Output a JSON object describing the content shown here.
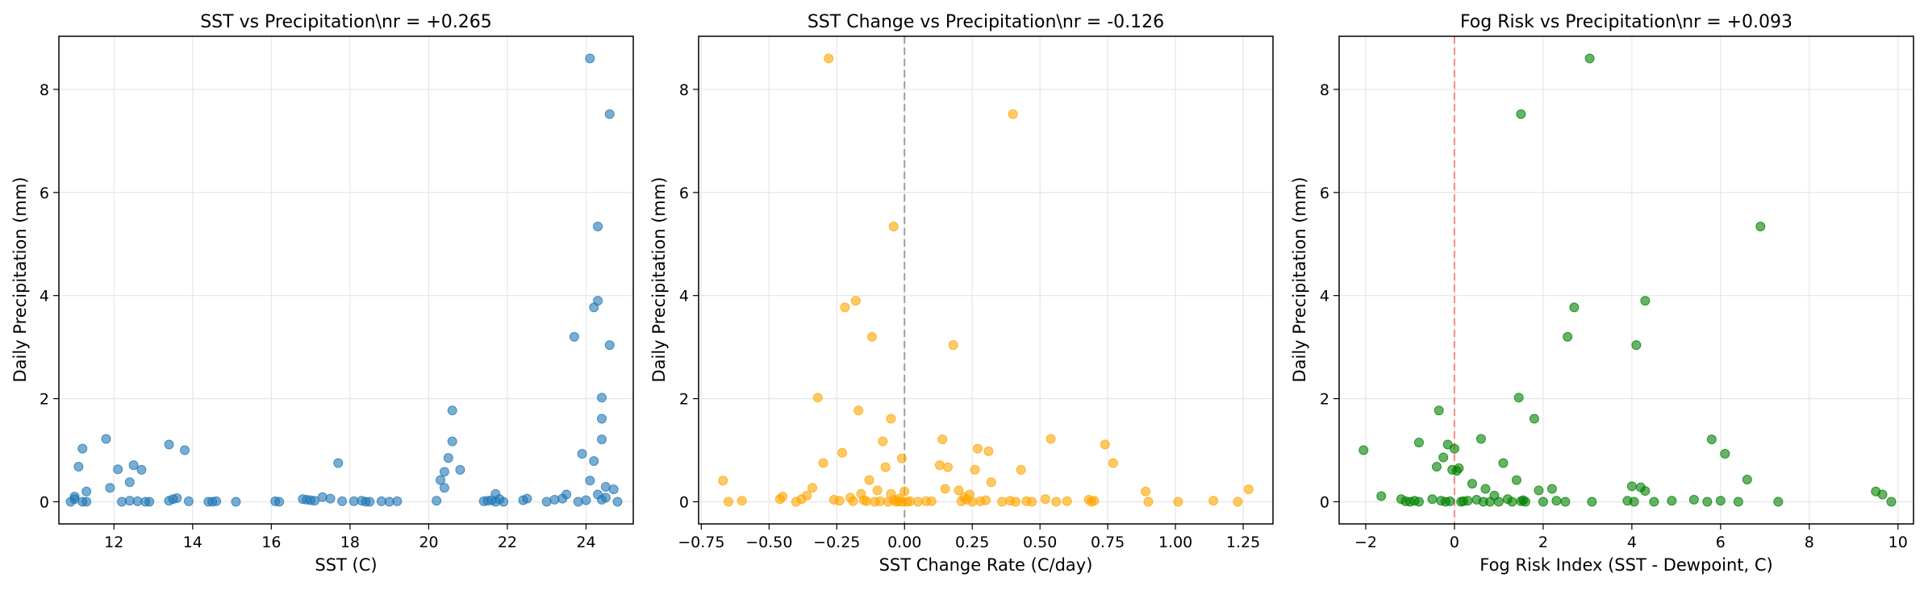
{
  "chart_data": [
    {
      "type": "scatter",
      "title": "SST vs Precipitation\\nr = +0.265",
      "xlabel": "SST (C)",
      "ylabel": "Daily Precipitation (mm)",
      "xlim": [
        10.6,
        25.2
      ],
      "ylim": [
        -0.43,
        9.03
      ],
      "xticks": [
        12,
        14,
        16,
        18,
        20,
        22,
        24
      ],
      "yticks": [
        0,
        2,
        4,
        6,
        8
      ],
      "xtick_labels": [
        "12",
        "14",
        "16",
        "18",
        "20",
        "22",
        "24"
      ],
      "ytick_labels": [
        "0",
        "2",
        "4",
        "6",
        "8"
      ],
      "grid": true,
      "color": "#1f77b4",
      "reference_line": null,
      "x": [
        10.9,
        11.0,
        11.0,
        11.1,
        11.2,
        11.2,
        11.3,
        11.3,
        11.8,
        11.9,
        12.1,
        12.2,
        12.4,
        12.4,
        12.5,
        12.6,
        12.7,
        12.8,
        12.9,
        13.4,
        13.4,
        13.5,
        13.6,
        13.8,
        13.9,
        14.4,
        14.5,
        14.6,
        15.1,
        16.1,
        16.2,
        16.8,
        16.9,
        17.0,
        17.1,
        17.3,
        17.5,
        17.7,
        17.8,
        18.1,
        18.3,
        18.4,
        18.5,
        18.8,
        19.0,
        19.2,
        20.2,
        20.3,
        20.4,
        20.4,
        20.5,
        20.6,
        20.6,
        20.8,
        21.4,
        21.5,
        21.6,
        21.7,
        21.7,
        21.8,
        21.9,
        22.4,
        22.5,
        23.0,
        23.2,
        23.4,
        23.5,
        23.7,
        23.8,
        23.9,
        24.0,
        24.1,
        24.1,
        24.2,
        24.2,
        24.3,
        24.3,
        24.3,
        24.4,
        24.4,
        24.4,
        24.4,
        24.5,
        24.5,
        24.6,
        24.6,
        24.7,
        24.8
      ],
      "y": [
        0.0,
        0.1,
        0.05,
        0.68,
        0.0,
        1.03,
        0.2,
        0.0,
        1.22,
        0.27,
        0.63,
        0.0,
        0.38,
        0.02,
        0.71,
        0.01,
        0.62,
        0.0,
        0.0,
        1.11,
        0.02,
        0.05,
        0.07,
        1.0,
        0.01,
        0.0,
        0.0,
        0.01,
        0.0,
        0.01,
        0.0,
        0.05,
        0.04,
        0.03,
        0.02,
        0.09,
        0.06,
        0.75,
        0.01,
        0.01,
        0.02,
        0.0,
        0.0,
        0.01,
        0.0,
        0.01,
        0.02,
        0.42,
        0.27,
        0.58,
        0.85,
        1.17,
        1.77,
        0.62,
        0.01,
        0.02,
        0.03,
        0.0,
        0.15,
        0.05,
        0.0,
        0.03,
        0.06,
        0.0,
        0.04,
        0.06,
        0.14,
        3.2,
        0.0,
        0.93,
        0.03,
        0.41,
        8.6,
        0.79,
        3.77,
        3.9,
        0.14,
        5.34,
        0.04,
        1.21,
        1.61,
        2.02,
        0.08,
        0.29,
        7.52,
        3.04,
        0.24,
        0.0
      ]
    },
    {
      "type": "scatter",
      "title": "SST Change vs Precipitation\\nr = -0.126",
      "xlabel": "SST Change Rate (C/day)",
      "ylabel": "Daily Precipitation (mm)",
      "xlim": [
        -0.76,
        1.36
      ],
      "ylim": [
        -0.43,
        9.03
      ],
      "xticks": [
        -0.75,
        -0.5,
        -0.25,
        0.0,
        0.25,
        0.5,
        0.75,
        1.0,
        1.25
      ],
      "yticks": [
        0,
        2,
        4,
        6,
        8
      ],
      "xtick_labels": [
        "−0.75",
        "−0.50",
        "−0.25",
        "0.00",
        "0.25",
        "0.50",
        "0.75",
        "1.00",
        "1.25"
      ],
      "ytick_labels": [
        "0",
        "2",
        "4",
        "6",
        "8"
      ],
      "grid": true,
      "color": "#ffa500",
      "reference_line": {
        "axis": "x",
        "value": 0.0,
        "color": "#888888"
      },
      "x": [
        -0.67,
        -0.65,
        -0.6,
        -0.46,
        -0.45,
        -0.4,
        -0.38,
        -0.36,
        -0.34,
        -0.32,
        -0.3,
        -0.28,
        -0.26,
        -0.24,
        -0.23,
        -0.22,
        -0.2,
        -0.19,
        -0.18,
        -0.17,
        -0.16,
        -0.15,
        -0.14,
        -0.13,
        -0.12,
        -0.11,
        -0.1,
        -0.09,
        -0.08,
        -0.07,
        -0.06,
        -0.05,
        -0.05,
        -0.04,
        -0.04,
        -0.03,
        -0.02,
        -0.02,
        -0.01,
        -0.01,
        0.0,
        0.01,
        0.02,
        0.05,
        0.08,
        0.1,
        0.13,
        0.14,
        0.15,
        0.16,
        0.18,
        0.2,
        0.21,
        0.22,
        0.23,
        0.24,
        0.25,
        0.26,
        0.27,
        0.28,
        0.3,
        0.31,
        0.32,
        0.36,
        0.39,
        0.4,
        0.41,
        0.43,
        0.45,
        0.47,
        0.52,
        0.54,
        0.56,
        0.6,
        0.68,
        0.69,
        0.7,
        0.74,
        0.77,
        0.89,
        0.9,
        1.01,
        1.14,
        1.23,
        1.27
      ],
      "y": [
        0.41,
        0.0,
        0.02,
        0.05,
        0.1,
        0.0,
        0.05,
        0.12,
        0.27,
        2.02,
        0.75,
        8.6,
        0.04,
        0.02,
        0.95,
        3.77,
        0.08,
        0.01,
        3.9,
        1.77,
        0.15,
        0.03,
        0.01,
        0.42,
        3.2,
        0.0,
        0.22,
        0.01,
        1.17,
        0.67,
        0.0,
        1.61,
        0.15,
        5.34,
        0.03,
        0.0,
        0.01,
        0.06,
        0.84,
        0.0,
        0.2,
        0.0,
        0.01,
        0.0,
        0.01,
        0.01,
        0.71,
        1.21,
        0.25,
        0.67,
        3.04,
        0.22,
        0.01,
        0.09,
        0.04,
        0.14,
        0.0,
        0.62,
        1.03,
        0.01,
        0.03,
        0.98,
        0.38,
        0.0,
        0.02,
        7.52,
        0.0,
        0.62,
        0.01,
        0.0,
        0.05,
        1.22,
        0.0,
        0.01,
        0.04,
        0.0,
        0.02,
        1.11,
        0.75,
        0.2,
        0.0,
        0.0,
        0.02,
        0.0,
        0.24
      ]
    },
    {
      "type": "scatter",
      "title": "Fog Risk vs Precipitation\\nr = +0.093",
      "xlabel": "Fog Risk Index (SST - Dewpoint, C)",
      "ylabel": "Daily Precipitation (mm)",
      "xlim": [
        -2.6,
        10.35
      ],
      "ylim": [
        -0.43,
        9.03
      ],
      "xticks": [
        -2,
        0,
        2,
        4,
        6,
        8,
        10
      ],
      "yticks": [
        0,
        2,
        4,
        6,
        8
      ],
      "xtick_labels": [
        "−2",
        "0",
        "2",
        "4",
        "6",
        "8",
        "10"
      ],
      "ytick_labels": [
        "0",
        "2",
        "4",
        "6",
        "8"
      ],
      "grid": true,
      "color": "#008000",
      "reference_line": {
        "axis": "x",
        "value": 0.0,
        "color": "#ff6f6f"
      },
      "x": [
        -2.05,
        -1.65,
        -1.2,
        -1.1,
        -1.0,
        -0.9,
        -0.8,
        -0.8,
        -0.5,
        -0.4,
        -0.35,
        -0.3,
        -0.25,
        -0.2,
        -0.15,
        -0.1,
        -0.05,
        0.0,
        0.05,
        0.1,
        0.15,
        0.2,
        0.3,
        0.4,
        0.5,
        0.6,
        0.65,
        0.7,
        0.8,
        0.9,
        1.0,
        1.1,
        1.2,
        1.3,
        1.4,
        1.45,
        1.5,
        1.5,
        1.55,
        1.6,
        1.8,
        1.9,
        2.0,
        2.2,
        2.3,
        2.5,
        2.55,
        2.7,
        3.05,
        3.1,
        3.9,
        4.0,
        4.05,
        4.1,
        4.2,
        4.3,
        4.3,
        4.5,
        4.9,
        5.4,
        5.7,
        5.8,
        6.0,
        6.1,
        6.4,
        6.6,
        6.9,
        7.3,
        9.5,
        9.65,
        9.85
      ],
      "y": [
        1.0,
        0.11,
        0.05,
        0.01,
        0.0,
        0.02,
        1.15,
        0.0,
        0.05,
        0.68,
        1.77,
        0.02,
        0.86,
        0.0,
        1.11,
        0.01,
        0.62,
        1.03,
        0.6,
        0.65,
        0.0,
        0.01,
        0.02,
        0.35,
        0.04,
        1.22,
        0.0,
        0.25,
        0.0,
        0.12,
        0.0,
        0.75,
        0.05,
        0.0,
        0.42,
        2.02,
        0.01,
        7.52,
        0.03,
        0.0,
        1.61,
        0.22,
        0.0,
        0.25,
        0.02,
        0.0,
        3.2,
        3.77,
        8.6,
        0.0,
        0.02,
        0.3,
        0.0,
        3.04,
        0.28,
        3.9,
        0.21,
        0.0,
        0.02,
        0.04,
        0.0,
        1.21,
        0.02,
        0.93,
        0.0,
        0.43,
        5.34,
        0.0,
        0.2,
        0.14,
        0.0
      ]
    }
  ]
}
